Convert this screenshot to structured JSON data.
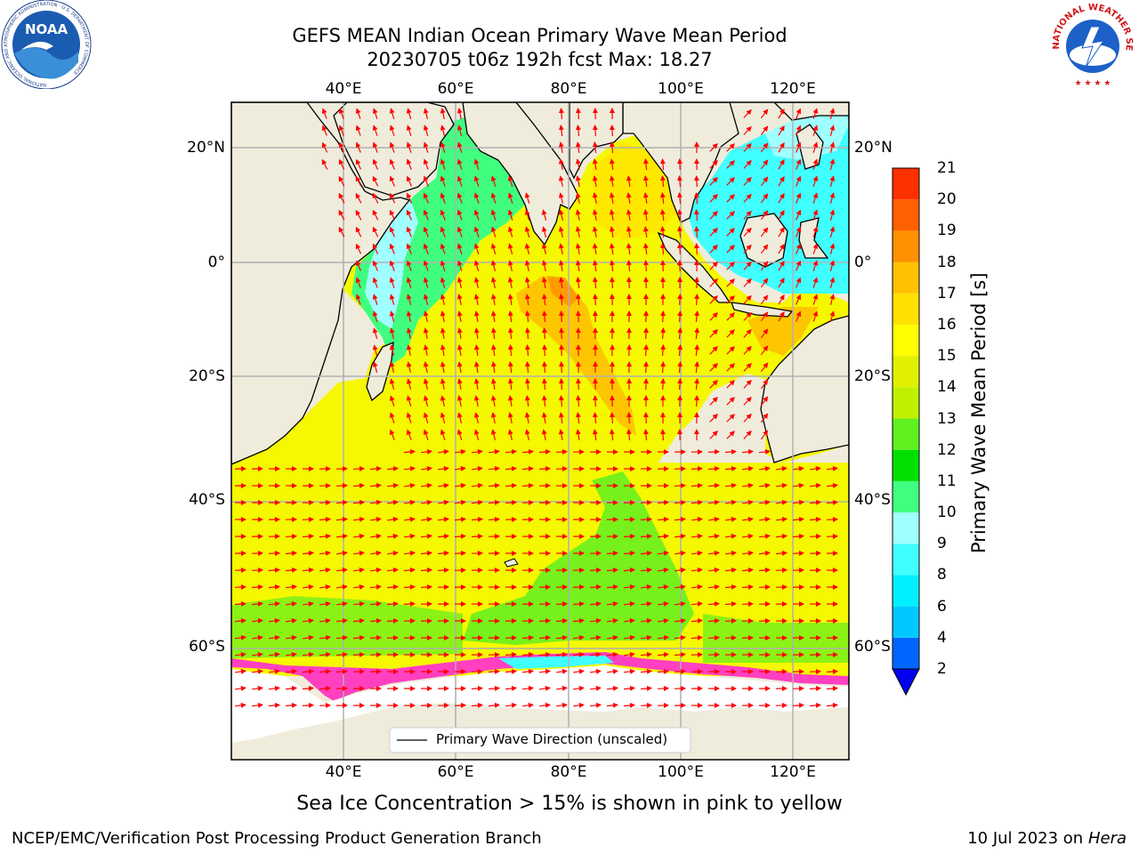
{
  "title": {
    "line1": "GEFS MEAN Indian Ocean Primary Wave Mean Period",
    "line2": "20230705 t06z 192h fcst   Max: 18.27"
  },
  "axes": {
    "lon_ticks": [
      "40°E",
      "60°E",
      "80°E",
      "100°E",
      "120°E"
    ],
    "lat_ticks": [
      "20°N",
      "0°",
      "20°S",
      "40°S",
      "60°S"
    ]
  },
  "colorbar": {
    "title": "Primary Wave Mean Period [s]",
    "levels": [
      "2",
      "4",
      "6",
      "8",
      "9",
      "10",
      "11",
      "12",
      "13",
      "14",
      "15",
      "16",
      "17",
      "18",
      "19",
      "20",
      "21"
    ],
    "colors": [
      "#0066ff",
      "#00c8ff",
      "#00f0ff",
      "#40ffff",
      "#a0ffff",
      "#40ff80",
      "#00e000",
      "#60f020",
      "#c0f000",
      "#e0f000",
      "#ffff00",
      "#ffe000",
      "#ffc000",
      "#ff9000",
      "#ff6000",
      "#ff3000"
    ],
    "extend_color": "#0000ee"
  },
  "legend": {
    "label": "Primary Wave Direction (unscaled)"
  },
  "caption": "Sea Ice Concentration > 15% is shown in pink to yellow",
  "footer": {
    "left": "NCEP/EMC/Verification Post Processing Product Generation Branch",
    "date": "10 Jul 2023 on ",
    "machine": "Hera"
  },
  "logos": {
    "noaa": {
      "text": "NOAA",
      "ring_text": "NATIONAL OCEANIC AND ATMOSPHERIC ADMINISTRATION · U.S. DEPARTMENT OF COMMERCE"
    },
    "nws": {
      "ring_text": "NATIONAL WEATHER SERVICE"
    }
  },
  "map_colors": {
    "land": "#efecdc",
    "ice_free_ocean": "#ffffff",
    "arrow": "#ff0000",
    "grid": "#b0b0b0"
  },
  "map_data": {
    "lon_range": [
      20,
      130
    ],
    "lat_range": [
      -77,
      27
    ],
    "max_period_s": 18.27
  }
}
